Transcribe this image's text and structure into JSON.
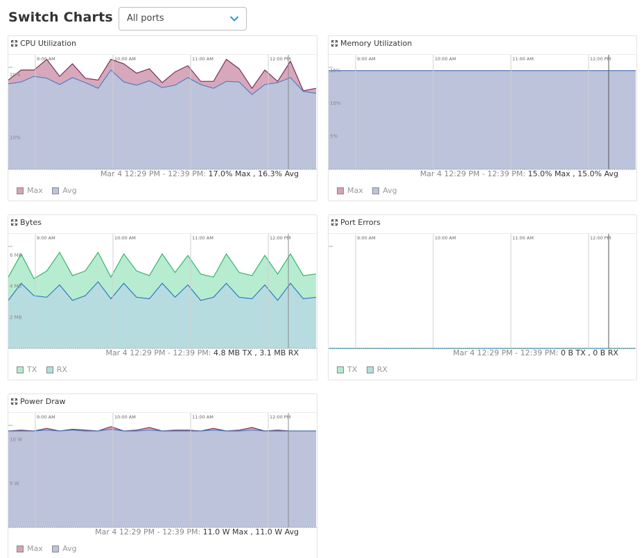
{
  "page": {
    "title": "Switch Charts"
  },
  "filter": {
    "selected": "All ports"
  },
  "time_ticks": [
    "9:00 AM",
    "10:00 AM",
    "11:00 AM",
    "12:00 PM"
  ],
  "colors": {
    "max_fill": "#d5a3b8",
    "max_stroke": "#7b2f54",
    "avg_fill": "#bcc4dc",
    "avg_stroke": "#4a80c6",
    "tx_fill": "#b3ebcf",
    "tx_stroke": "#35b56c",
    "rx_fill": "#b6dbe0",
    "rx_stroke": "#2f78c0"
  },
  "panels": [
    {
      "title": "CPU Utilization",
      "summary_range": "Mar 4 12:29 PM - 12:39 PM: ",
      "summary_value": "17.0% Max , 16.3% Avg",
      "legend": [
        "Max",
        "Avg"
      ],
      "chart_data": {
        "type": "area",
        "y_ticks": [
          "10%",
          "20%"
        ],
        "series": [
          {
            "name": "Max",
            "values": [
              19.2,
              20.8,
              20.8,
              22.5,
              19.8,
              21.8,
              19.5,
              19.2,
              22.5,
              21.8,
              20.3,
              21.0,
              18.8,
              20.5,
              21.5,
              19.0,
              19.0,
              22.5,
              21.0,
              17.9,
              20.8,
              19.0,
              22.2,
              17.5,
              17.9
            ]
          },
          {
            "name": "Avg",
            "values": [
              18.6,
              18.9,
              19.8,
              19.5,
              18.5,
              19.6,
              18.8,
              17.9,
              20.8,
              18.9,
              18.4,
              19.1,
              18.0,
              18.4,
              19.6,
              18.5,
              17.9,
              19.0,
              18.9,
              16.9,
              18.5,
              18.8,
              19.6,
              17.4,
              17.1
            ]
          }
        ]
      }
    },
    {
      "title": "Memory Utilization",
      "summary_range": "Mar 4 12:29 PM - 12:39 PM: ",
      "summary_value": "15.0% Max , 15.0% Avg",
      "legend": [
        "Max",
        "Avg"
      ],
      "chart_data": {
        "type": "area",
        "y_ticks": [
          "5%",
          "10%",
          "15%"
        ],
        "series": [
          {
            "name": "Max",
            "values": [
              15.0,
              15.0
            ]
          },
          {
            "name": "Avg",
            "values": [
              15.0,
              15.0
            ]
          }
        ]
      }
    },
    {
      "title": "Bytes",
      "summary_range": "Mar 4 12:29 PM - 12:39 PM: ",
      "summary_value": "4.8 MB TX , 3.1 MB RX",
      "legend": [
        "TX",
        "RX"
      ],
      "chart_data": {
        "type": "area",
        "y_ticks": [
          "2 MB",
          "4 MB",
          "6 MB"
        ],
        "series": [
          {
            "name": "TX",
            "values": [
              4.6,
              6.1,
              4.5,
              5.0,
              6.2,
              4.7,
              5.0,
              6.2,
              4.6,
              6.1,
              5.0,
              4.7,
              6.1,
              4.9,
              6.0,
              4.8,
              4.6,
              6.1,
              4.9,
              4.7,
              6.0,
              4.8,
              6.1,
              4.7,
              4.8
            ]
          },
          {
            "name": "RX",
            "values": [
              3.1,
              4.2,
              3.4,
              3.3,
              4.1,
              3.1,
              3.4,
              4.3,
              3.2,
              4.2,
              3.3,
              3.2,
              4.2,
              3.3,
              4.1,
              3.1,
              3.3,
              4.2,
              3.3,
              3.2,
              4.1,
              3.1,
              4.2,
              3.2,
              3.3
            ]
          }
        ]
      }
    },
    {
      "title": "Port Errors",
      "summary_range": "Mar 4 12:29 PM - 12:39 PM: ",
      "summary_value": "0 B TX , 0 B RX",
      "legend": [
        "TX",
        "RX"
      ],
      "chart_data": {
        "type": "area",
        "y_ticks": [],
        "series": [
          {
            "name": "TX",
            "values": [
              0,
              0
            ]
          },
          {
            "name": "RX",
            "values": [
              0,
              0
            ]
          }
        ]
      }
    },
    {
      "title": "Power Draw",
      "summary_range": "Mar 4 12:29 PM - 12:39 PM: ",
      "summary_value": "11.0 W Max , 11.0 W Avg",
      "legend": [
        "Max",
        "Avg"
      ],
      "chart_data": {
        "type": "area",
        "y_ticks": [
          "5 W",
          "10 W"
        ],
        "series": [
          {
            "name": "Max",
            "values": [
              11.0,
              11.1,
              11.0,
              11.3,
              11.0,
              11.2,
              11.1,
              11.0,
              11.5,
              11.0,
              11.1,
              11.4,
              11.0,
              11.1,
              11.1,
              11.0,
              11.3,
              11.0,
              11.1,
              11.4,
              11.0,
              11.1,
              11.0,
              11.0,
              11.0
            ]
          },
          {
            "name": "Avg",
            "values": [
              11.0,
              11.0,
              11.0,
              11.1,
              11.0,
              11.1,
              11.0,
              11.0,
              11.2,
              11.0,
              11.0,
              11.1,
              11.0,
              11.0,
              11.0,
              11.0,
              11.1,
              11.0,
              11.0,
              11.1,
              11.0,
              11.0,
              11.0,
              11.0,
              11.0
            ]
          }
        ]
      }
    }
  ]
}
